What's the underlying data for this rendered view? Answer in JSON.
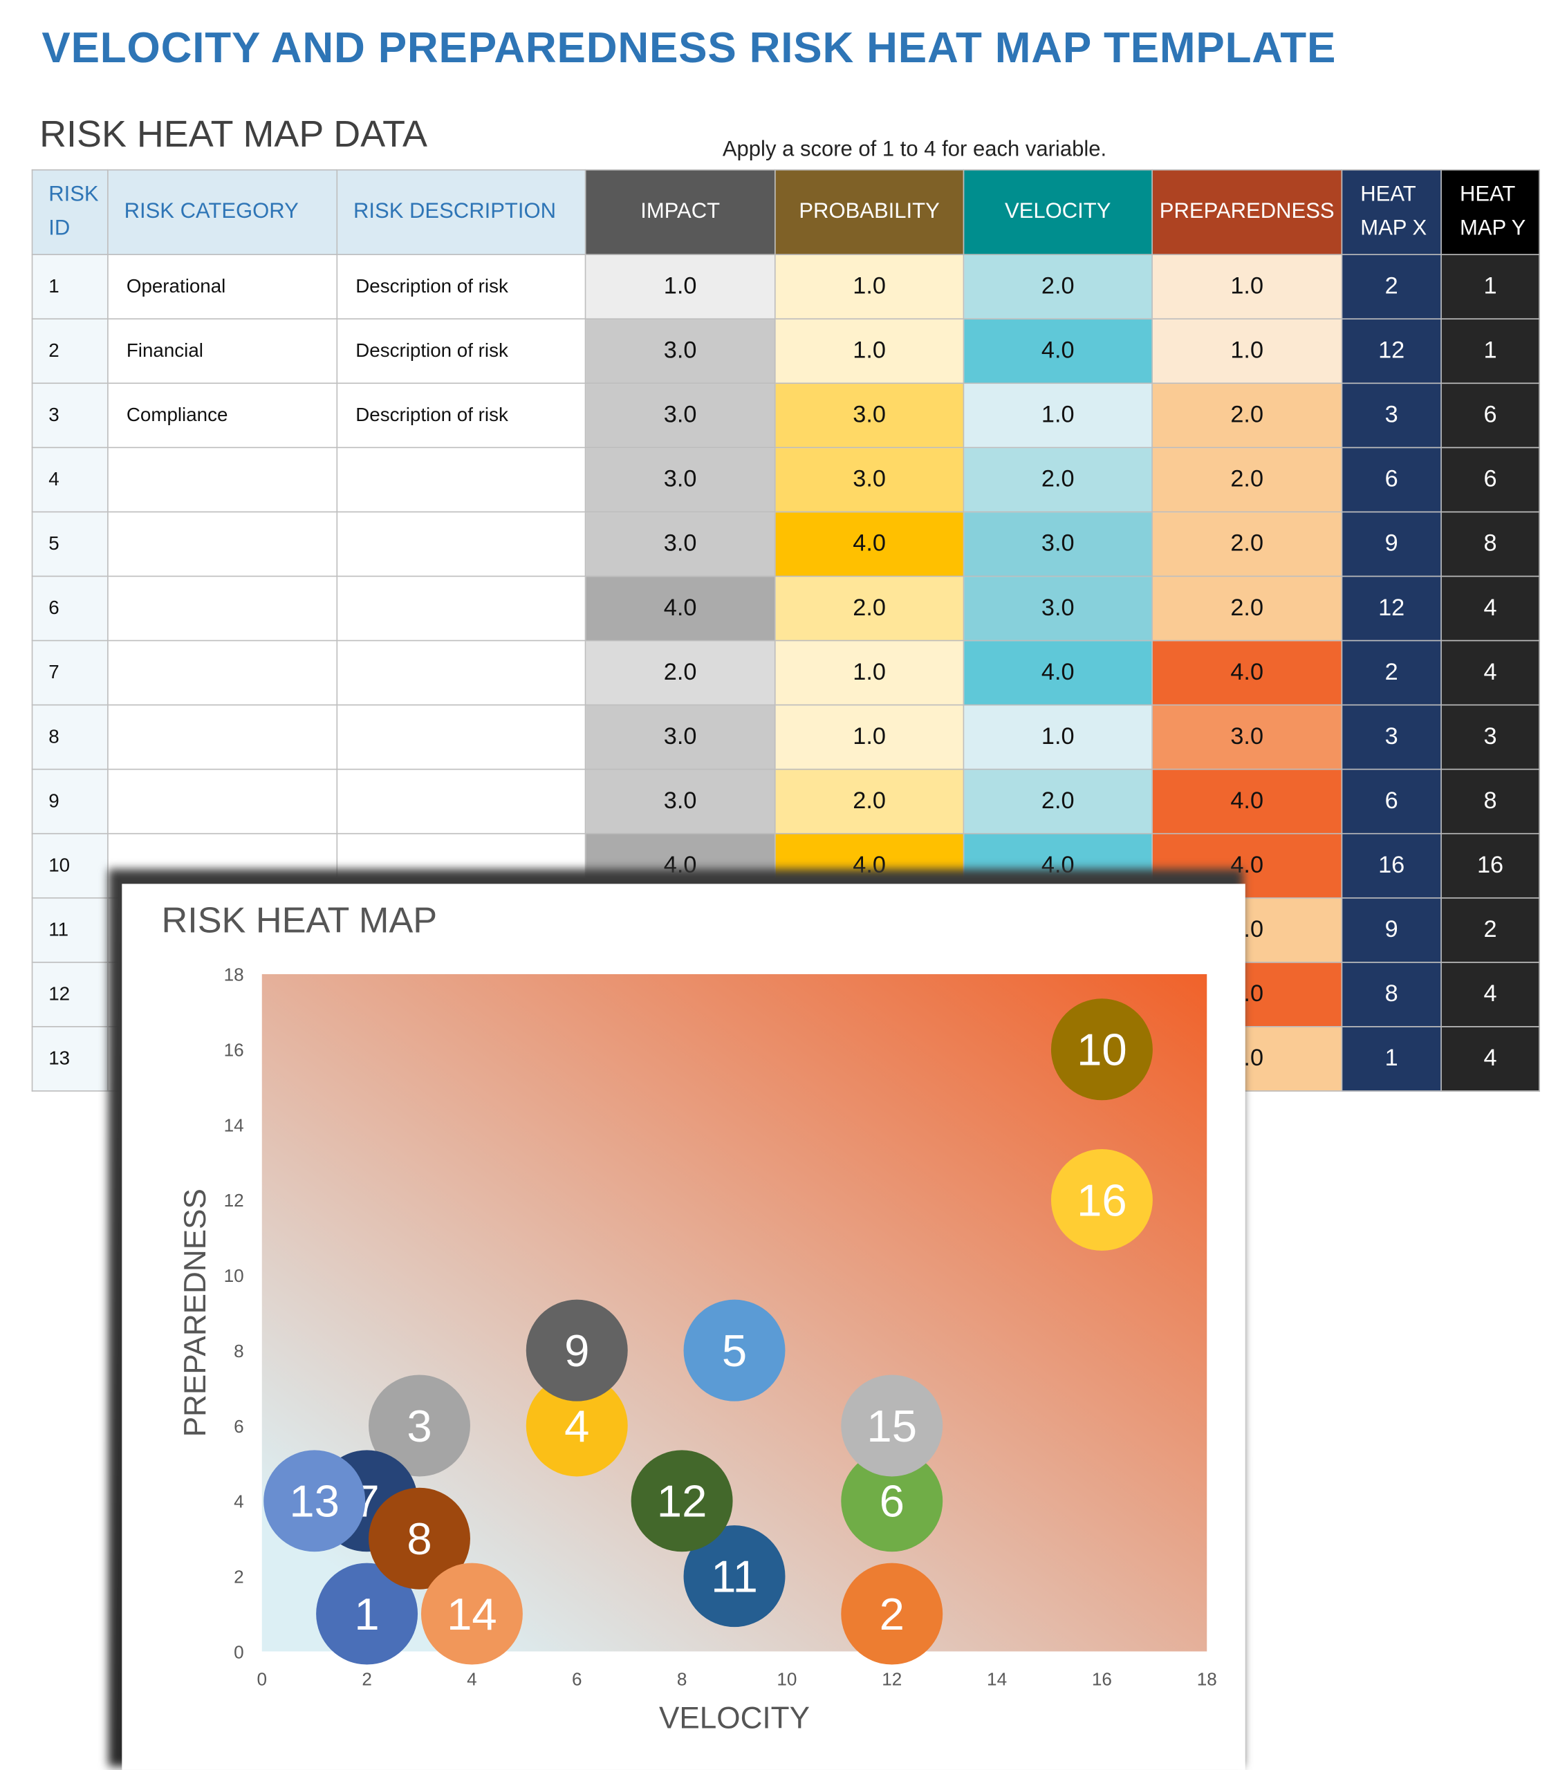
{
  "title": "VELOCITY AND PREPAREDNESS RISK HEAT MAP TEMPLATE",
  "section_title": "RISK HEAT MAP DATA",
  "note": "Apply a score of 1 to 4 for each variable.",
  "table": {
    "headers": [
      {
        "label": "RISK ID",
        "color": "#DAEAF3"
      },
      {
        "label": "RISK CATEGORY",
        "color": "#DAEAF3"
      },
      {
        "label": "RISK DESCRIPTION",
        "color": "#DAEAF3"
      },
      {
        "label": "IMPACT",
        "color": "#595959"
      },
      {
        "label": "PROBABILITY",
        "color": "#7F6127"
      },
      {
        "label": "VELOCITY",
        "color": "#008E8E"
      },
      {
        "label": "PREPAREDNESS",
        "color": "#AE4322"
      },
      {
        "label": "HEAT MAP X",
        "color": "#203864"
      },
      {
        "label": "HEAT MAP Y",
        "color": "#000000"
      }
    ],
    "score_colors": {
      "impact": {
        "1.0": "#EDEDED",
        "2.0": "#DBDBDB",
        "3.0": "#C9C9C9",
        "4.0": "#ABABAB"
      },
      "probability": {
        "1.0": "#FFF2CC",
        "2.0": "#FFE699",
        "3.0": "#FFD966",
        "4.0": "#FFC000"
      },
      "velocity": {
        "1.0": "#DAEEF3",
        "2.0": "#B0DFE5",
        "3.0": "#87D0DB",
        "4.0": "#5FC8D8"
      },
      "preparedness": {
        "1.0": "#FCE9D2",
        "2.0": "#FACB94",
        "3.0": "#F4945F",
        "4.0": "#F0662D"
      }
    },
    "rows": [
      {
        "id": "1",
        "category": "Operational",
        "description": "Description of risk",
        "impact": "1.0",
        "probability": "1.0",
        "velocity": "2.0",
        "preparedness": "1.0",
        "x": "2",
        "y": "1"
      },
      {
        "id": "2",
        "category": "Financial",
        "description": "Description of risk",
        "impact": "3.0",
        "probability": "1.0",
        "velocity": "4.0",
        "preparedness": "1.0",
        "x": "12",
        "y": "1"
      },
      {
        "id": "3",
        "category": "Compliance",
        "description": "Description of risk",
        "impact": "3.0",
        "probability": "3.0",
        "velocity": "1.0",
        "preparedness": "2.0",
        "x": "3",
        "y": "6"
      },
      {
        "id": "4",
        "category": "",
        "description": "",
        "impact": "3.0",
        "probability": "3.0",
        "velocity": "2.0",
        "preparedness": "2.0",
        "x": "6",
        "y": "6"
      },
      {
        "id": "5",
        "category": "",
        "description": "",
        "impact": "3.0",
        "probability": "4.0",
        "velocity": "3.0",
        "preparedness": "2.0",
        "x": "9",
        "y": "8"
      },
      {
        "id": "6",
        "category": "",
        "description": "",
        "impact": "4.0",
        "probability": "2.0",
        "velocity": "3.0",
        "preparedness": "2.0",
        "x": "12",
        "y": "4"
      },
      {
        "id": "7",
        "category": "",
        "description": "",
        "impact": "2.0",
        "probability": "1.0",
        "velocity": "4.0",
        "preparedness": "4.0",
        "x": "2",
        "y": "4"
      },
      {
        "id": "8",
        "category": "",
        "description": "",
        "impact": "3.0",
        "probability": "1.0",
        "velocity": "1.0",
        "preparedness": "3.0",
        "x": "3",
        "y": "3"
      },
      {
        "id": "9",
        "category": "",
        "description": "",
        "impact": "3.0",
        "probability": "2.0",
        "velocity": "2.0",
        "preparedness": "4.0",
        "x": "6",
        "y": "8"
      },
      {
        "id": "10",
        "category": "",
        "description": "",
        "impact": "4.0",
        "probability": "4.0",
        "velocity": "4.0",
        "preparedness": "4.0",
        "x": "16",
        "y": "16"
      },
      {
        "id": "11",
        "category": "",
        "description": "",
        "impact": null,
        "probability": null,
        "velocity": null,
        "preparedness": "2.0",
        "x": "9",
        "y": "2"
      },
      {
        "id": "12",
        "category": "",
        "description": "",
        "impact": null,
        "probability": null,
        "velocity": null,
        "preparedness": "4.0",
        "x": "8",
        "y": "4"
      },
      {
        "id": "13",
        "category": "",
        "description": "",
        "impact": null,
        "probability": null,
        "velocity": null,
        "preparedness": "2.0",
        "x": "1",
        "y": "4"
      }
    ]
  },
  "chart_data": {
    "type": "scatter",
    "title": "RISK HEAT MAP",
    "xlabel": "VELOCITY",
    "ylabel": "PREPAREDNESS",
    "xlim": [
      0,
      18
    ],
    "ylim": [
      0,
      18
    ],
    "xticks": [
      0,
      2,
      4,
      6,
      8,
      10,
      12,
      14,
      16,
      18
    ],
    "yticks": [
      0,
      2,
      4,
      6,
      8,
      10,
      12,
      14,
      16,
      18
    ],
    "grid": false,
    "background_gradient": [
      "#DCEFF4",
      "#F0622A"
    ],
    "points": [
      {
        "label": "1",
        "x": 2,
        "y": 1,
        "color": "#4A6FB8"
      },
      {
        "label": "2",
        "x": 12,
        "y": 1,
        "color": "#ED7D31"
      },
      {
        "label": "3",
        "x": 3,
        "y": 6,
        "color": "#A5A5A5"
      },
      {
        "label": "4",
        "x": 6,
        "y": 6,
        "color": "#FBBF17"
      },
      {
        "label": "5",
        "x": 9,
        "y": 8,
        "color": "#5B9BD5"
      },
      {
        "label": "6",
        "x": 12,
        "y": 4,
        "color": "#70AD47"
      },
      {
        "label": "7",
        "x": 2,
        "y": 4,
        "color": "#264478"
      },
      {
        "label": "8",
        "x": 3,
        "y": 3,
        "color": "#9E480E"
      },
      {
        "label": "9",
        "x": 6,
        "y": 8,
        "color": "#636363"
      },
      {
        "label": "10",
        "x": 16,
        "y": 16,
        "color": "#997300"
      },
      {
        "label": "11",
        "x": 9,
        "y": 2,
        "color": "#255E91"
      },
      {
        "label": "12",
        "x": 8,
        "y": 4,
        "color": "#43682B"
      },
      {
        "label": "13",
        "x": 1,
        "y": 4,
        "color": "#698ED0"
      },
      {
        "label": "14",
        "x": 4,
        "y": 1,
        "color": "#F1975A"
      },
      {
        "label": "15",
        "x": 12,
        "y": 6,
        "color": "#B7B7B7"
      },
      {
        "label": "16",
        "x": 16,
        "y": 12,
        "color": "#FFCD33"
      }
    ]
  }
}
